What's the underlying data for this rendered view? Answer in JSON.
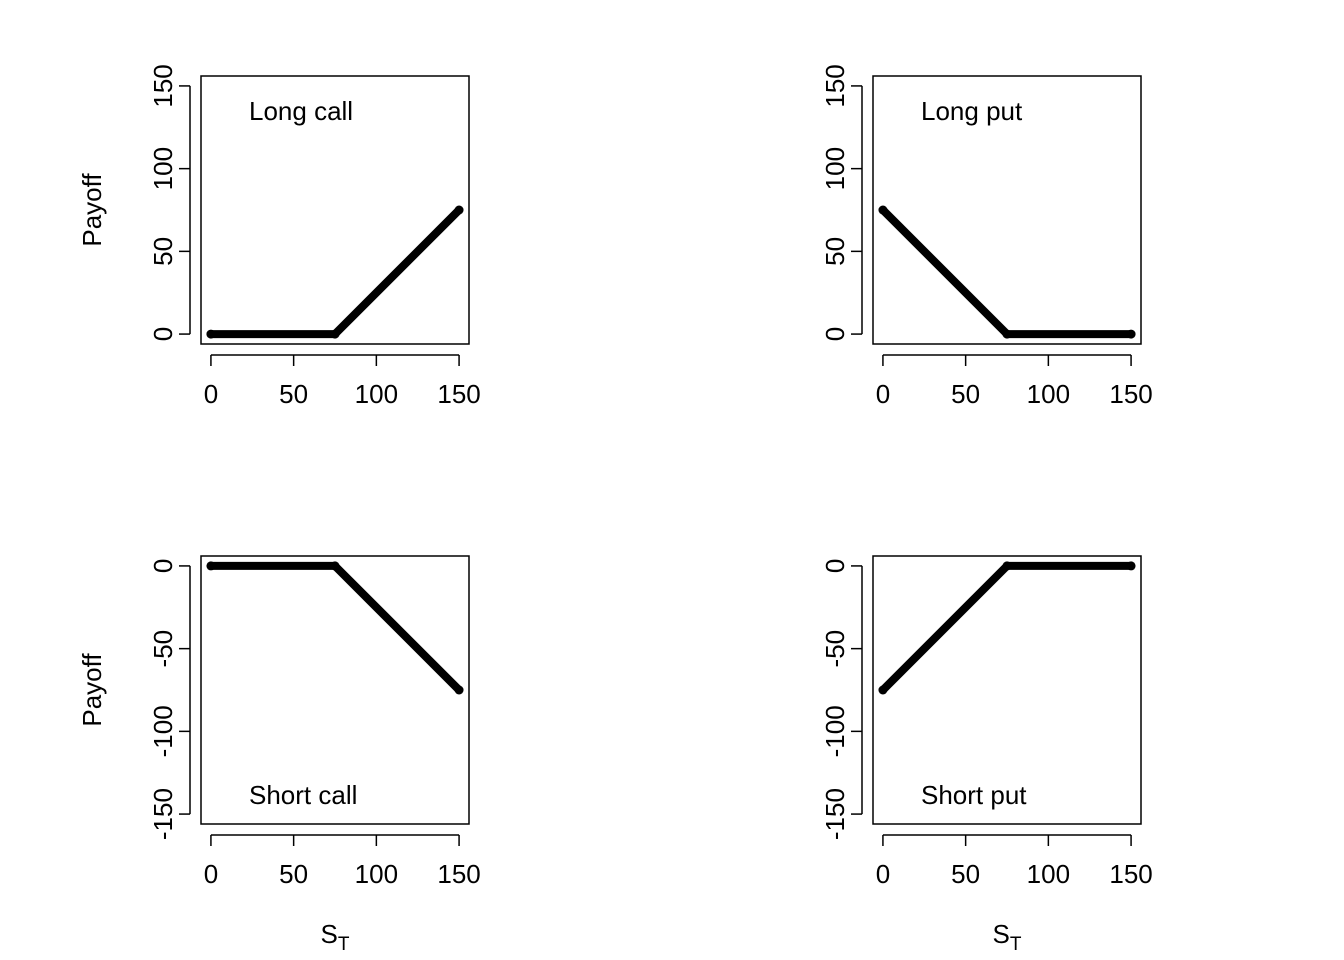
{
  "chart_data": [
    {
      "type": "line",
      "annotation": "Long call",
      "xlabel": "",
      "ylabel": "Payoff",
      "xlim": [
        0,
        150
      ],
      "ylim": [
        0,
        150
      ],
      "xticks": [
        0,
        50,
        100,
        150
      ],
      "yticks": [
        0,
        50,
        100,
        150
      ],
      "series": [
        {
          "x": [
            0,
            75,
            150
          ],
          "y": [
            0,
            0,
            75
          ]
        }
      ]
    },
    {
      "type": "line",
      "annotation": "Long put",
      "xlabel": "",
      "ylabel": "",
      "xlim": [
        0,
        150
      ],
      "ylim": [
        0,
        150
      ],
      "xticks": [
        0,
        50,
        100,
        150
      ],
      "yticks": [
        0,
        50,
        100,
        150
      ],
      "series": [
        {
          "x": [
            0,
            75,
            150
          ],
          "y": [
            75,
            0,
            0
          ]
        }
      ]
    },
    {
      "type": "line",
      "annotation": "Short call",
      "xlabel": "S_T",
      "ylabel": "Payoff",
      "xlim": [
        0,
        150
      ],
      "ylim": [
        -150,
        0
      ],
      "xticks": [
        0,
        50,
        100,
        150
      ],
      "yticks": [
        -150,
        -100,
        -50,
        0
      ],
      "series": [
        {
          "x": [
            0,
            75,
            150
          ],
          "y": [
            0,
            0,
            -75
          ]
        }
      ]
    },
    {
      "type": "line",
      "annotation": "Short put",
      "xlabel": "S_T",
      "ylabel": "",
      "xlim": [
        0,
        150
      ],
      "ylim": [
        -150,
        0
      ],
      "xticks": [
        0,
        50,
        100,
        150
      ],
      "yticks": [
        -150,
        -100,
        -50,
        0
      ],
      "series": [
        {
          "x": [
            0,
            75,
            150
          ],
          "y": [
            -75,
            0,
            0
          ]
        }
      ]
    }
  ]
}
